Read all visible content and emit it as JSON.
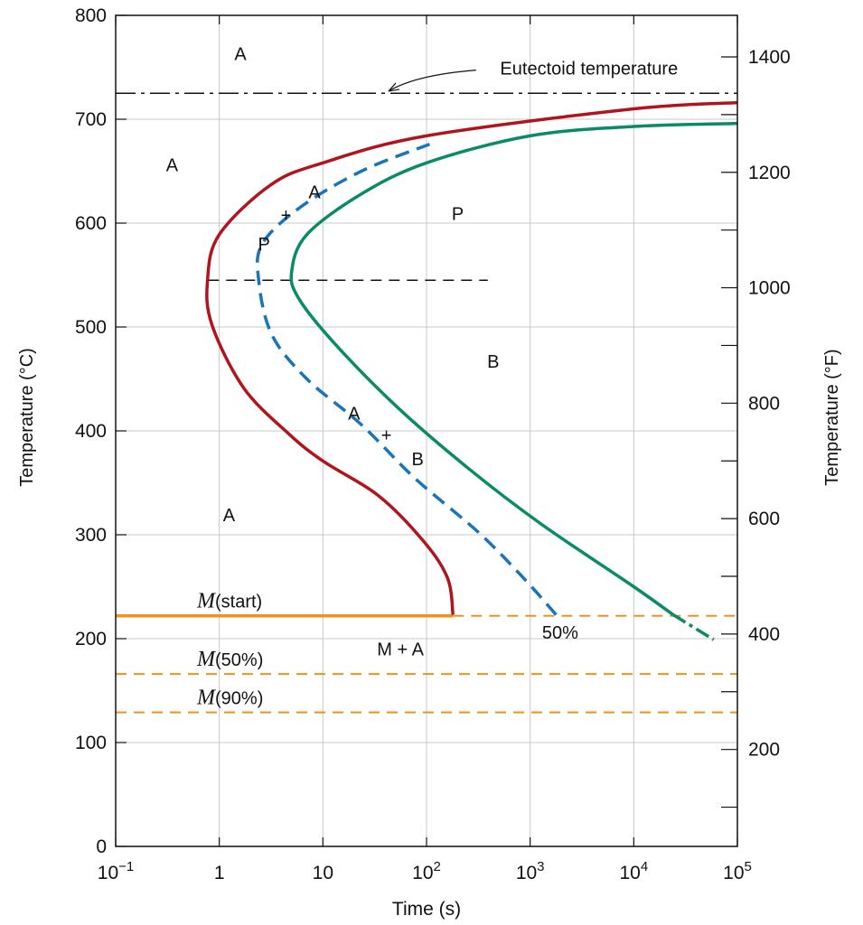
{
  "chart_data": {
    "type": "line",
    "xlabel": "Time (s)",
    "ylabel": "Temperature (°C)",
    "y2label": "Temperature (°F)",
    "x_scale": "log",
    "xlim": [
      0.1,
      100000
    ],
    "ylim": [
      0,
      800
    ],
    "y2lim": [
      32,
      1472
    ],
    "x_ticks": [
      {
        "value": 0.1,
        "base": "10",
        "exp": "−1"
      },
      {
        "value": 1,
        "base": "1",
        "exp": ""
      },
      {
        "value": 10,
        "base": "10",
        "exp": ""
      },
      {
        "value": 100,
        "base": "10",
        "exp": "2"
      },
      {
        "value": 1000,
        "base": "10",
        "exp": "3"
      },
      {
        "value": 10000,
        "base": "10",
        "exp": "4"
      },
      {
        "value": 100000,
        "base": "10",
        "exp": "5"
      }
    ],
    "y_ticks": [
      0,
      100,
      200,
      300,
      400,
      500,
      600,
      700,
      800
    ],
    "y2_ticks": [
      200,
      400,
      600,
      800,
      1000,
      1200,
      1400
    ],
    "grid": true,
    "series": [
      {
        "id": "start",
        "color": "#b0151e",
        "style": "solid",
        "points": [
          [
            180,
            223
          ],
          [
            160,
            258
          ],
          [
            95,
            293
          ],
          [
            35,
            337
          ],
          [
            10,
            371
          ],
          [
            4.7,
            397
          ],
          [
            1.73,
            441
          ],
          [
            0.85,
            502
          ],
          [
            0.77,
            545
          ],
          [
            1,
            589
          ],
          [
            3.16,
            637
          ],
          [
            10,
            658
          ],
          [
            100,
            684
          ],
          [
            10000,
            710
          ],
          [
            100000,
            716
          ]
        ]
      },
      {
        "id": "50%",
        "color": "#1a74b8",
        "style": "dashed",
        "points": [
          [
            1780,
            223
          ],
          [
            870,
            258
          ],
          [
            320,
            302
          ],
          [
            78,
            354
          ],
          [
            23.5,
            406
          ],
          [
            7,
            450
          ],
          [
            3.2,
            493
          ],
          [
            2.4,
            545
          ],
          [
            2.6,
            580
          ],
          [
            6,
            615
          ],
          [
            23.5,
            650
          ],
          [
            107,
            676
          ]
        ]
      },
      {
        "id": "end",
        "color": "#0a8a67",
        "style": "solid",
        "points": [
          [
            24000,
            223
          ],
          [
            10000,
            250
          ],
          [
            1290,
            310
          ],
          [
            260,
            363
          ],
          [
            52,
            423
          ],
          [
            13,
            484
          ],
          [
            5.8,
            528
          ],
          [
            5,
            554
          ],
          [
            7,
            589
          ],
          [
            23.5,
            628
          ],
          [
            100,
            658
          ],
          [
            1000,
            684
          ],
          [
            10000,
            693
          ],
          [
            100000,
            696
          ]
        ],
        "extension": [
          [
            24000,
            223
          ],
          [
            59000,
            199
          ]
        ]
      }
    ],
    "horizontal_lines": [
      {
        "id": "eutectoid",
        "temp": 725,
        "from": 0.1,
        "to": 100000,
        "color": "#111111",
        "style": "dash-dot"
      },
      {
        "id": "nose",
        "temp": 545,
        "from": 0.78,
        "to": 390,
        "color": "#111111",
        "style": "dashed"
      },
      {
        "id": "m-start",
        "temp": 222,
        "from": 0.1,
        "to": 180,
        "color": "#f0901e",
        "style": "solid",
        "continue_dashed_to": 100000
      },
      {
        "id": "m-50",
        "temp": 166,
        "from": 0.1,
        "to": 100000,
        "color": "#f0901e",
        "style": "dashed"
      },
      {
        "id": "m-90",
        "temp": 129,
        "from": 0.1,
        "to": 100000,
        "color": "#f0901e",
        "style": "dashed"
      }
    ],
    "annotations": [
      {
        "text": "A",
        "t": 1.6,
        "T": 763
      },
      {
        "text": "A",
        "t": 0.35,
        "T": 656
      },
      {
        "text": "A",
        "t": 8.3,
        "T": 630
      },
      {
        "text": "+",
        "t": 4.4,
        "T": 608
      },
      {
        "text": "P",
        "t": 2.7,
        "T": 580
      },
      {
        "text": "P",
        "t": 200,
        "T": 609
      },
      {
        "text": "B",
        "t": 440,
        "T": 467
      },
      {
        "text": "A",
        "t": 20,
        "T": 417
      },
      {
        "text": "+",
        "t": 41,
        "T": 396
      },
      {
        "text": "B",
        "t": 82,
        "T": 373
      },
      {
        "text": "A",
        "t": 1.24,
        "T": 319
      },
      {
        "text": "M + A",
        "t": 56,
        "T": 190
      },
      {
        "text": "50%",
        "t": 1950,
        "T": 206
      }
    ],
    "m_labels": [
      {
        "italic": "M",
        "rest": "(start)",
        "T": 236
      },
      {
        "italic": "M",
        "rest": "(50%)",
        "T": 180
      },
      {
        "italic": "M",
        "rest": "(90%)",
        "T": 143
      }
    ],
    "eutectoid_label": {
      "text": "Eutectoid temperature",
      "t": 3700,
      "T": 749,
      "arrow_to": [
        43,
        727
      ]
    }
  }
}
